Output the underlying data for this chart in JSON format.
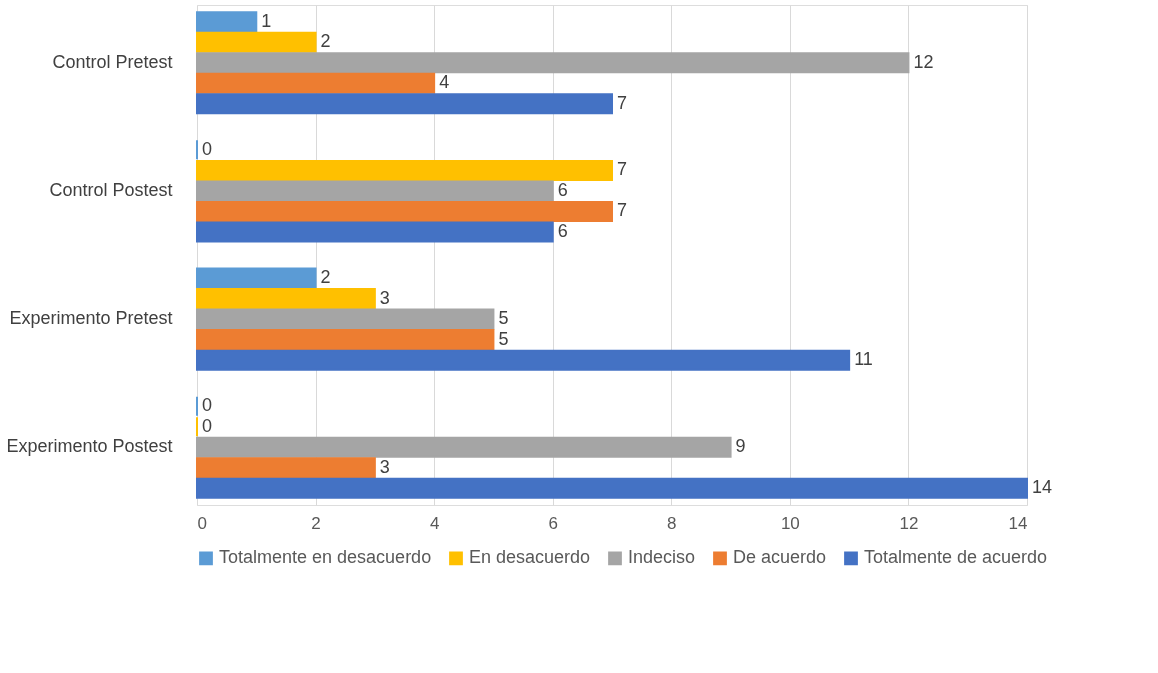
{
  "chart_data": {
    "type": "bar",
    "orientation": "horizontal",
    "categories": [
      "Control Pretest",
      "Control Postest",
      "Experimento Pretest",
      "Experimento Postest"
    ],
    "series": [
      {
        "name": "Totalmente en desacuerdo",
        "color": "#5b9bd5",
        "values": [
          1,
          0,
          2,
          0
        ]
      },
      {
        "name": "En desacuerdo",
        "color": "#ffc000",
        "values": [
          2,
          7,
          3,
          0
        ]
      },
      {
        "name": "Indeciso",
        "color": "#a5a5a5",
        "values": [
          12,
          6,
          5,
          9
        ]
      },
      {
        "name": "De acuerdo",
        "color": "#ed7d31",
        "values": [
          4,
          7,
          5,
          3
        ]
      },
      {
        "name": "Totalmente de acuerdo",
        "color": "#4472c4",
        "values": [
          7,
          6,
          11,
          14
        ]
      }
    ],
    "xlim": [
      0,
      14
    ],
    "xticks": [
      0,
      2,
      4,
      6,
      8,
      10,
      12,
      14
    ],
    "grid": "x",
    "legend": "bottom",
    "data_labels": true
  }
}
